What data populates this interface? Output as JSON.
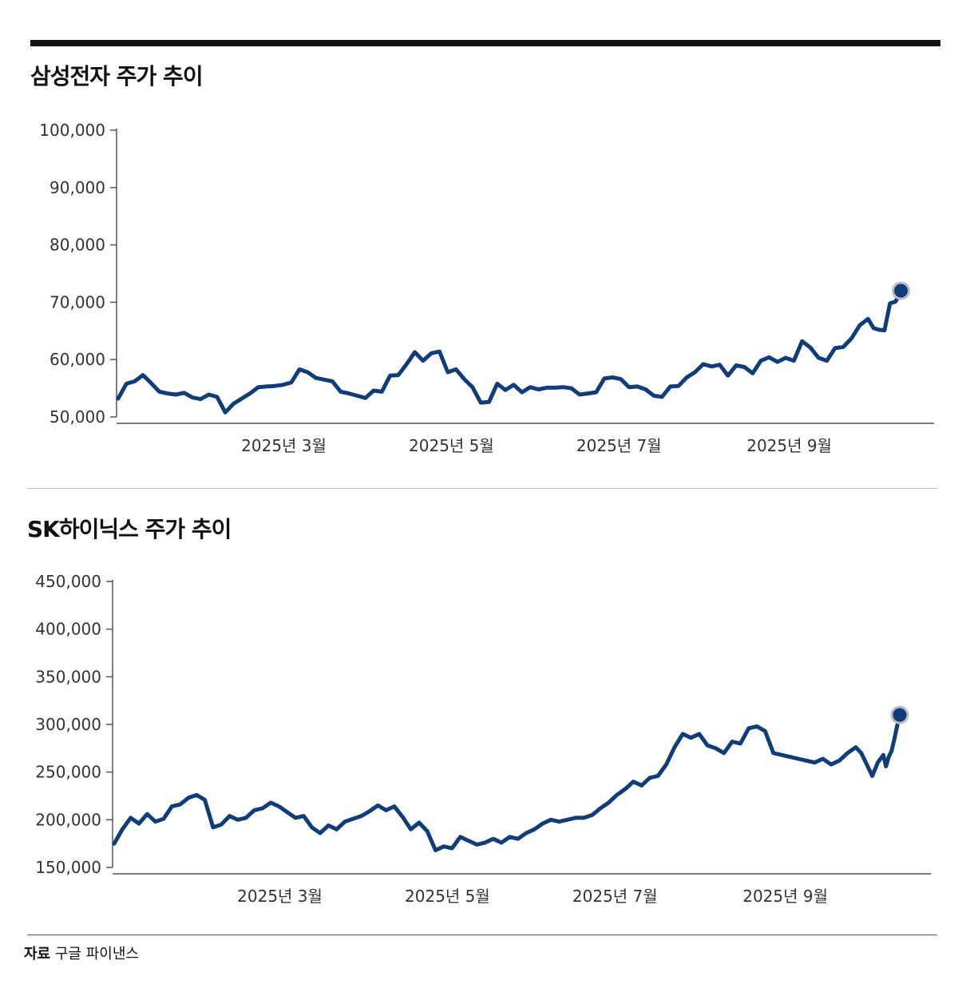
{
  "source": {
    "label": "자료",
    "text": "구글 파이낸스"
  },
  "chart_data": [
    {
      "type": "line",
      "title": "삼성전자 주가 추이",
      "xlabel": "",
      "ylabel": "",
      "ylim": [
        50000,
        100000
      ],
      "yticks": [
        50000,
        60000,
        70000,
        80000,
        90000,
        100000
      ],
      "ytick_labels": [
        "50,000",
        "60,000",
        "70,000",
        "80,000",
        "90,000",
        "100,000"
      ],
      "xlim": [
        "2025-01-02",
        "2025-10-15"
      ],
      "xticks": [
        {
          "date": "2025-03-01",
          "label": "2025년 3월"
        },
        {
          "date": "2025-05-01",
          "label": "2025년 5월"
        },
        {
          "date": "2025-07-01",
          "label": "2025년 7월"
        },
        {
          "date": "2025-09-01",
          "label": "2025년 9월"
        }
      ],
      "grid": false,
      "color": "#0f3d7a",
      "last_point_marker": true,
      "series": [
        {
          "points": [
            [
              "2025-01-02",
              53200
            ],
            [
              "2025-01-05",
              55800
            ],
            [
              "2025-01-08",
              56200
            ],
            [
              "2025-01-11",
              57300
            ],
            [
              "2025-01-14",
              55900
            ],
            [
              "2025-01-17",
              54400
            ],
            [
              "2025-01-20",
              54100
            ],
            [
              "2025-01-23",
              53900
            ],
            [
              "2025-01-26",
              54200
            ],
            [
              "2025-01-29",
              53400
            ],
            [
              "2025-02-01",
              53100
            ],
            [
              "2025-02-04",
              53900
            ],
            [
              "2025-02-07",
              53500
            ],
            [
              "2025-02-10",
              50800
            ],
            [
              "2025-02-13",
              52300
            ],
            [
              "2025-02-16",
              53200
            ],
            [
              "2025-02-19",
              54100
            ],
            [
              "2025-02-22",
              55200
            ],
            [
              "2025-02-25",
              55300
            ],
            [
              "2025-02-28",
              55400
            ],
            [
              "2025-03-03",
              55600
            ],
            [
              "2025-03-06",
              56000
            ],
            [
              "2025-03-09",
              58300
            ],
            [
              "2025-03-12",
              57800
            ],
            [
              "2025-03-15",
              56800
            ],
            [
              "2025-03-18",
              56500
            ],
            [
              "2025-03-21",
              56200
            ],
            [
              "2025-03-24",
              54400
            ],
            [
              "2025-03-27",
              54100
            ],
            [
              "2025-03-30",
              53700
            ],
            [
              "2025-04-02",
              53300
            ],
            [
              "2025-04-05",
              54600
            ],
            [
              "2025-04-08",
              54400
            ],
            [
              "2025-04-11",
              57200
            ],
            [
              "2025-04-14",
              57300
            ],
            [
              "2025-04-17",
              59200
            ],
            [
              "2025-04-20",
              61300
            ],
            [
              "2025-04-23",
              59800
            ],
            [
              "2025-04-26",
              61100
            ],
            [
              "2025-04-29",
              61400
            ],
            [
              "2025-05-02",
              57800
            ],
            [
              "2025-05-05",
              58300
            ],
            [
              "2025-05-08",
              56600
            ],
            [
              "2025-05-11",
              55200
            ],
            [
              "2025-05-14",
              52500
            ],
            [
              "2025-05-17",
              52600
            ],
            [
              "2025-05-20",
              55800
            ],
            [
              "2025-05-23",
              54700
            ],
            [
              "2025-05-26",
              55600
            ],
            [
              "2025-05-29",
              54300
            ],
            [
              "2025-06-01",
              55200
            ],
            [
              "2025-06-04",
              54800
            ],
            [
              "2025-06-07",
              55100
            ],
            [
              "2025-06-10",
              55100
            ],
            [
              "2025-06-13",
              55200
            ],
            [
              "2025-06-16",
              55000
            ],
            [
              "2025-06-19",
              53900
            ],
            [
              "2025-06-22",
              54100
            ],
            [
              "2025-06-25",
              54300
            ],
            [
              "2025-06-28",
              56700
            ],
            [
              "2025-07-01",
              56900
            ],
            [
              "2025-07-04",
              56600
            ],
            [
              "2025-07-07",
              55200
            ],
            [
              "2025-07-10",
              55300
            ],
            [
              "2025-07-13",
              54800
            ],
            [
              "2025-07-16",
              53700
            ],
            [
              "2025-07-19",
              53500
            ],
            [
              "2025-07-22",
              55300
            ],
            [
              "2025-07-25",
              55400
            ],
            [
              "2025-07-28",
              56900
            ],
            [
              "2025-07-31",
              57800
            ],
            [
              "2025-08-03",
              59200
            ],
            [
              "2025-08-06",
              58800
            ],
            [
              "2025-08-09",
              59100
            ],
            [
              "2025-08-12",
              57200
            ],
            [
              "2025-08-15",
              59000
            ],
            [
              "2025-08-18",
              58700
            ],
            [
              "2025-08-21",
              57600
            ],
            [
              "2025-08-24",
              59800
            ],
            [
              "2025-08-27",
              60400
            ],
            [
              "2025-08-30",
              59600
            ],
            [
              "2025-09-02",
              60300
            ],
            [
              "2025-09-05",
              59800
            ],
            [
              "2025-09-08",
              63200
            ],
            [
              "2025-09-11",
              62100
            ],
            [
              "2025-09-14",
              60300
            ],
            [
              "2025-09-17",
              59800
            ],
            [
              "2025-09-20",
              62000
            ],
            [
              "2025-09-23",
              62200
            ],
            [
              "2025-09-26",
              63700
            ],
            [
              "2025-09-29",
              66000
            ],
            [
              "2025-10-02",
              67100
            ],
            [
              "2025-10-04",
              65500
            ],
            [
              "2025-10-06",
              65200
            ],
            [
              "2025-10-08",
              65100
            ],
            [
              "2025-10-10",
              69800
            ],
            [
              "2025-10-12",
              70100
            ],
            [
              "2025-10-14",
              72000
            ]
          ]
        }
      ]
    },
    {
      "type": "line",
      "title": "SK하이닉스 주가 추이",
      "xlabel": "",
      "ylabel": "",
      "ylim": [
        150000,
        450000
      ],
      "yticks": [
        150000,
        200000,
        250000,
        300000,
        350000,
        400000,
        450000
      ],
      "ytick_labels": [
        "150,000",
        "200,000",
        "250,000",
        "300,000",
        "350,000",
        "400,000",
        "450,000"
      ],
      "xlim": [
        "2025-01-02",
        "2025-10-15"
      ],
      "xticks": [
        {
          "date": "2025-03-01",
          "label": "2025년 3월"
        },
        {
          "date": "2025-05-01",
          "label": "2025년 5월"
        },
        {
          "date": "2025-07-01",
          "label": "2025년 7월"
        },
        {
          "date": "2025-09-01",
          "label": "2025년 9월"
        }
      ],
      "grid": false,
      "color": "#0f3d7a",
      "last_point_marker": true,
      "series": [
        {
          "points": [
            [
              "2025-01-02",
              175000
            ],
            [
              "2025-01-05",
              190000
            ],
            [
              "2025-01-08",
              202000
            ],
            [
              "2025-01-11",
              196000
            ],
            [
              "2025-01-14",
              206000
            ],
            [
              "2025-01-17",
              198000
            ],
            [
              "2025-01-20",
              201000
            ],
            [
              "2025-01-23",
              214000
            ],
            [
              "2025-01-26",
              216000
            ],
            [
              "2025-01-29",
              223000
            ],
            [
              "2025-02-01",
              226000
            ],
            [
              "2025-02-04",
              221000
            ],
            [
              "2025-02-07",
              192000
            ],
            [
              "2025-02-10",
              195000
            ],
            [
              "2025-02-13",
              204000
            ],
            [
              "2025-02-16",
              200000
            ],
            [
              "2025-02-19",
              202000
            ],
            [
              "2025-02-22",
              210000
            ],
            [
              "2025-02-25",
              212000
            ],
            [
              "2025-02-28",
              218000
            ],
            [
              "2025-03-03",
              214000
            ],
            [
              "2025-03-06",
              208000
            ],
            [
              "2025-03-09",
              202000
            ],
            [
              "2025-03-12",
              204000
            ],
            [
              "2025-03-15",
              192000
            ],
            [
              "2025-03-18",
              186000
            ],
            [
              "2025-03-21",
              194000
            ],
            [
              "2025-03-24",
              190000
            ],
            [
              "2025-03-27",
              198000
            ],
            [
              "2025-03-30",
              201000
            ],
            [
              "2025-04-02",
              204000
            ],
            [
              "2025-04-05",
              209000
            ],
            [
              "2025-04-08",
              215000
            ],
            [
              "2025-04-11",
              210000
            ],
            [
              "2025-04-14",
              214000
            ],
            [
              "2025-04-17",
              203000
            ],
            [
              "2025-04-20",
              190000
            ],
            [
              "2025-04-23",
              197000
            ],
            [
              "2025-04-26",
              188000
            ],
            [
              "2025-04-29",
              168000
            ],
            [
              "2025-05-02",
              172000
            ],
            [
              "2025-05-05",
              170000
            ],
            [
              "2025-05-08",
              182000
            ],
            [
              "2025-05-11",
              178000
            ],
            [
              "2025-05-14",
              174000
            ],
            [
              "2025-05-17",
              176000
            ],
            [
              "2025-05-20",
              180000
            ],
            [
              "2025-05-23",
              176000
            ],
            [
              "2025-05-26",
              182000
            ],
            [
              "2025-05-29",
              180000
            ],
            [
              "2025-06-01",
              186000
            ],
            [
              "2025-06-04",
              190000
            ],
            [
              "2025-06-07",
              196000
            ],
            [
              "2025-06-10",
              200000
            ],
            [
              "2025-06-13",
              198000
            ],
            [
              "2025-06-16",
              200000
            ],
            [
              "2025-06-19",
              202000
            ],
            [
              "2025-06-22",
              202000
            ],
            [
              "2025-06-25",
              205000
            ],
            [
              "2025-06-28",
              212000
            ],
            [
              "2025-07-01",
              218000
            ],
            [
              "2025-07-04",
              226000
            ],
            [
              "2025-07-07",
              232000
            ],
            [
              "2025-07-10",
              240000
            ],
            [
              "2025-07-13",
              236000
            ],
            [
              "2025-07-16",
              244000
            ],
            [
              "2025-07-19",
              246000
            ],
            [
              "2025-07-22",
              258000
            ],
            [
              "2025-07-25",
              276000
            ],
            [
              "2025-07-28",
              290000
            ],
            [
              "2025-07-31",
              286000
            ],
            [
              "2025-08-03",
              290000
            ],
            [
              "2025-08-06",
              278000
            ],
            [
              "2025-08-09",
              275000
            ],
            [
              "2025-08-12",
              270000
            ],
            [
              "2025-08-15",
              282000
            ],
            [
              "2025-08-18",
              280000
            ],
            [
              "2025-08-21",
              296000
            ],
            [
              "2025-08-24",
              298000
            ],
            [
              "2025-08-27",
              293000
            ],
            [
              "2025-08-30",
              270000
            ],
            [
              "2025-09-02",
              268000
            ],
            [
              "2025-09-05",
              266000
            ],
            [
              "2025-09-08",
              264000
            ],
            [
              "2025-09-11",
              262000
            ],
            [
              "2025-09-14",
              260000
            ],
            [
              "2025-09-17",
              264000
            ],
            [
              "2025-09-20",
              258000
            ],
            [
              "2025-09-23",
              262000
            ],
            [
              "2025-09-26",
              270000
            ],
            [
              "2025-09-29",
              276000
            ],
            [
              "2025-10-01",
              270000
            ],
            [
              "2025-10-03",
              258000
            ],
            [
              "2025-10-05",
              246000
            ],
            [
              "2025-10-07",
              260000
            ],
            [
              "2025-10-09",
              268000
            ],
            [
              "2025-10-10",
              256000
            ],
            [
              "2025-10-11",
              266000
            ],
            [
              "2025-10-12",
              272000
            ],
            [
              "2025-10-13",
              284000
            ],
            [
              "2025-10-14",
              298000
            ],
            [
              "2025-10-15",
              310000
            ]
          ]
        }
      ]
    }
  ]
}
